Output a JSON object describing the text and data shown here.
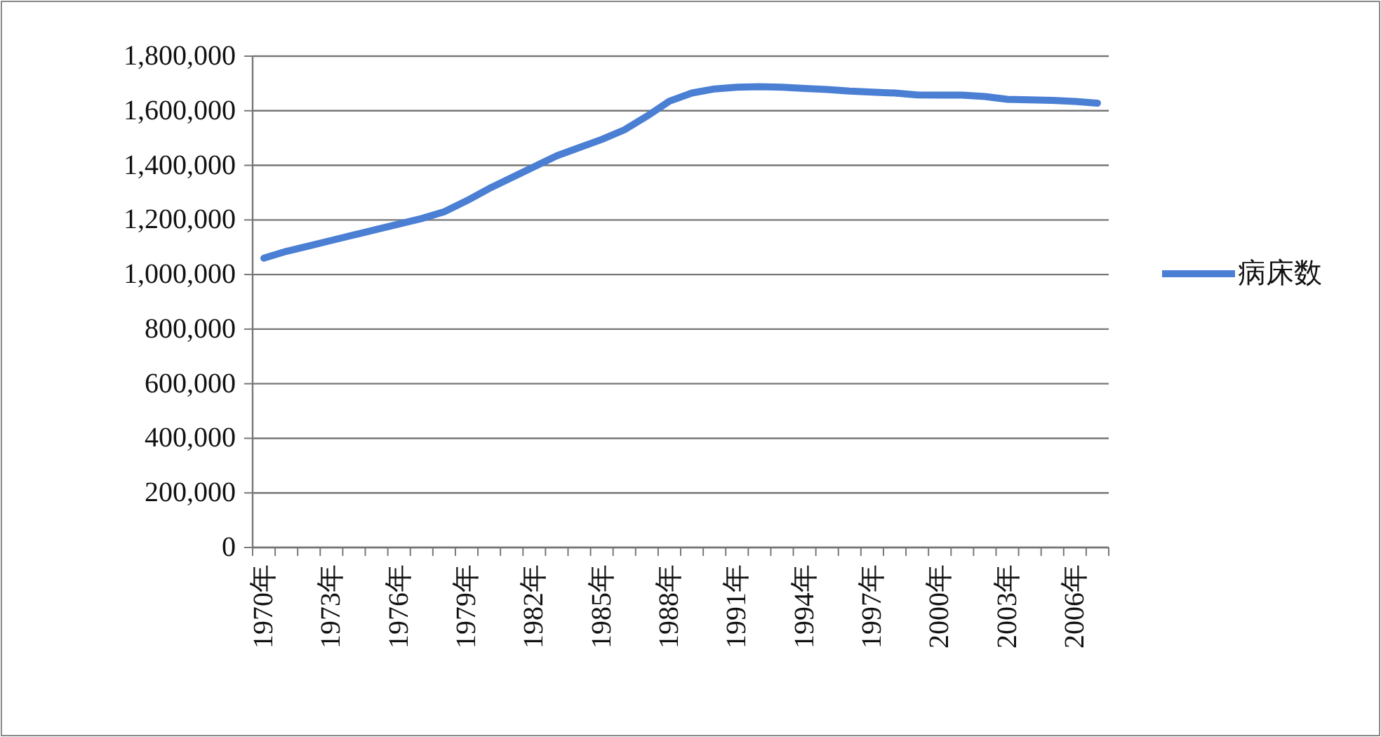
{
  "chart_data": {
    "type": "line",
    "categories": [
      "1970年",
      null,
      null,
      "1973年",
      null,
      null,
      "1976年",
      null,
      null,
      "1979年",
      null,
      null,
      "1982年",
      null,
      null,
      "1985年",
      null,
      null,
      "1988年",
      null,
      null,
      "1991年",
      null,
      null,
      "1994年",
      null,
      null,
      "1997年",
      null,
      null,
      "2000年",
      null,
      null,
      "2003年",
      null,
      null,
      "2006年",
      null
    ],
    "series": [
      {
        "name": "病床数",
        "color": "#4a7fd4",
        "values": [
          1060000,
          1085000,
          1105000,
          1125000,
          1145000,
          1165000,
          1185000,
          1205000,
          1230000,
          1270000,
          1315000,
          1355000,
          1395000,
          1435000,
          1465000,
          1495000,
          1530000,
          1580000,
          1635000,
          1665000,
          1680000,
          1686000,
          1688000,
          1686000,
          1682000,
          1678000,
          1672000,
          1668000,
          1665000,
          1658000,
          1657000,
          1657000,
          1652000,
          1642000,
          1640000,
          1638000,
          1634000,
          1628000
        ]
      }
    ],
    "ylim": [
      0,
      1800000
    ],
    "yticks": [
      {
        "value": 0,
        "label": "0"
      },
      {
        "value": 200000,
        "label": "200,000"
      },
      {
        "value": 400000,
        "label": "400,000"
      },
      {
        "value": 600000,
        "label": "600,000"
      },
      {
        "value": 800000,
        "label": "800,000"
      },
      {
        "value": 1000000,
        "label": "1,000,000"
      },
      {
        "value": 1200000,
        "label": "1,200,000"
      },
      {
        "value": 1400000,
        "label": "1,400,000"
      },
      {
        "value": 1600000,
        "label": "1,600,000"
      },
      {
        "value": 1800000,
        "label": "1,800,000"
      }
    ],
    "grid": "y",
    "legend": "right",
    "marker": "none",
    "line_style": "solid"
  }
}
